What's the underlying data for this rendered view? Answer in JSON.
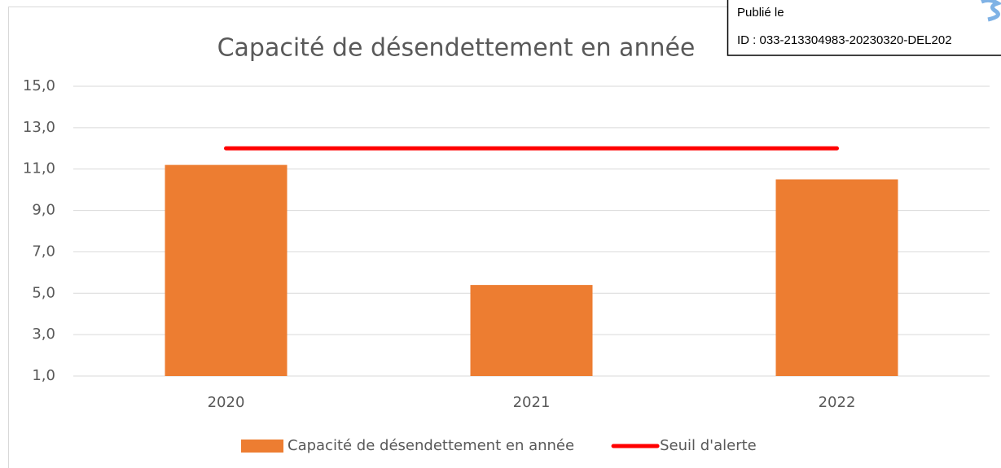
{
  "stamp": {
    "published": "Publié le",
    "id": "ID : 033-213304983-20230320-DEL202"
  },
  "chart_data": {
    "type": "bar-line",
    "title": "Capacité de désendettement en année",
    "categories": [
      "2020",
      "2021",
      "2022"
    ],
    "series": [
      {
        "name": "Capacité de désendettement en année",
        "type": "bar",
        "color": "#ed7d31",
        "values": [
          11.2,
          5.4,
          10.5
        ]
      },
      {
        "name": "Seuil d'alerte",
        "type": "line",
        "color": "#ff0000",
        "values": [
          12,
          12,
          12
        ]
      }
    ],
    "ylim": [
      1,
      15
    ],
    "yticks": [
      {
        "value": 1,
        "label": "1,0"
      },
      {
        "value": 3,
        "label": "3,0"
      },
      {
        "value": 5,
        "label": "5,0"
      },
      {
        "value": 7,
        "label": "7,0"
      },
      {
        "value": 9,
        "label": "9,0"
      },
      {
        "value": 11,
        "label": "11,0"
      },
      {
        "value": 13,
        "label": "13,0"
      },
      {
        "value": 15,
        "label": "15,0"
      }
    ],
    "grid": true,
    "legend": "bottom"
  }
}
